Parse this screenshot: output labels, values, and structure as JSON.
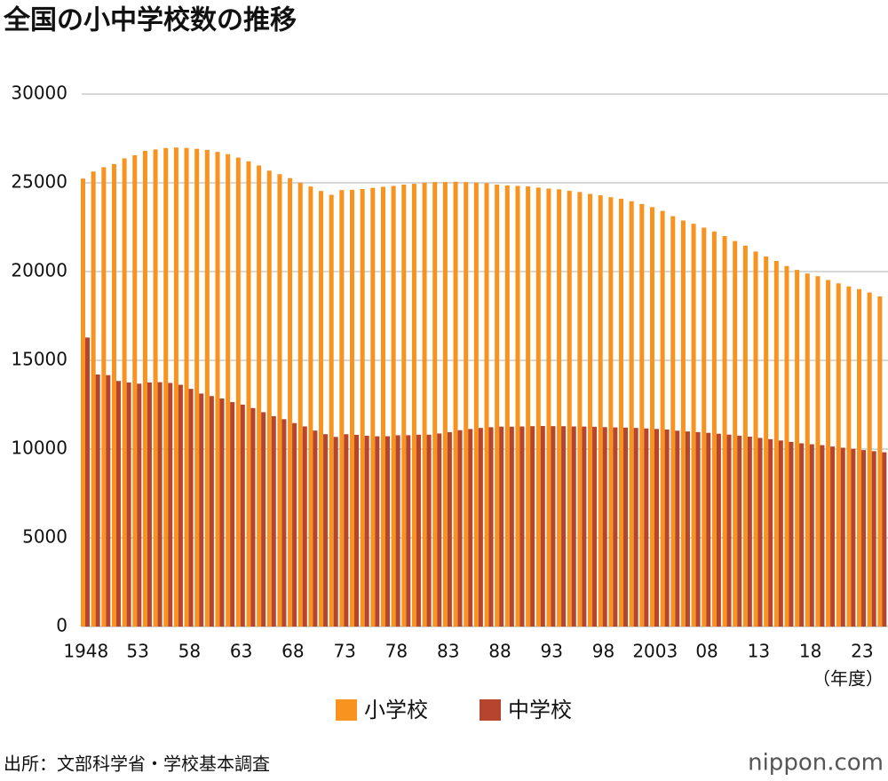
{
  "chart_data": {
    "type": "bar",
    "title": "全国の小中学校数の推移",
    "x_label": "（年度）",
    "categories": [
      "1948",
      null,
      null,
      null,
      null,
      "53",
      null,
      null,
      null,
      null,
      "58",
      null,
      null,
      null,
      null,
      "63",
      null,
      null,
      null,
      null,
      "68",
      null,
      null,
      null,
      null,
      "73",
      null,
      null,
      null,
      null,
      "78",
      null,
      null,
      null,
      null,
      "83",
      null,
      null,
      null,
      null,
      "88",
      null,
      null,
      null,
      null,
      "93",
      null,
      null,
      null,
      null,
      "98",
      null,
      null,
      null,
      null,
      "2003",
      null,
      null,
      null,
      null,
      "08",
      null,
      null,
      null,
      null,
      "13",
      null,
      null,
      null,
      null,
      "18",
      null,
      null,
      null,
      null,
      "23",
      null,
      null
    ],
    "series": [
      {
        "name": "小学校",
        "color": "#f7931e",
        "values": [
          25237,
          25638,
          25878,
          26056,
          26377,
          26555,
          26804,
          26880,
          26957,
          26988,
          26964,
          26916,
          26858,
          26741,
          26615,
          26423,
          26210,
          25977,
          25687,
          25487,
          25262,
          25013,
          24790,
          24540,
          24325,
          24592,
          24606,
          24650,
          24717,
          24777,
          24828,
          24899,
          24945,
          25005,
          25043,
          25045,
          25064,
          25040,
          25010,
          24982,
          24901,
          24851,
          24827,
          24798,
          24730,
          24676,
          24635,
          24548,
          24482,
          24376,
          24295,
          24188,
          24106,
          23964,
          23808,
          23633,
          23420,
          23123,
          22878,
          22693,
          22476,
          22258,
          22000,
          21721,
          21460,
          21131,
          20852,
          20601,
          20313,
          20095,
          19892,
          19738,
          19525,
          19336,
          19161,
          19012,
          18822,
          18600
        ]
      },
      {
        "name": "中学校",
        "color": "#b5452e",
        "values": [
          16285,
          14200,
          14165,
          13836,
          13748,
          13685,
          13750,
          13767,
          13724,
          13622,
          13392,
          13129,
          12986,
          12849,
          12647,
          12505,
          12310,
          12079,
          11851,
          11684,
          11463,
          11278,
          11040,
          10839,
          10686,
          10836,
          10802,
          10751,
          10719,
          10723,
          10778,
          10780,
          10810,
          10810,
          10879,
          10950,
          11062,
          11131,
          11190,
          11230,
          11266,
          11264,
          11275,
          11290,
          11300,
          11292,
          11289,
          11274,
          11269,
          11257,
          11236,
          11220,
          11209,
          11191,
          11159,
          11134,
          11102,
          11035,
          10992,
          10955,
          10915,
          10864,
          10815,
          10751,
          10699,
          10628,
          10557,
          10484,
          10404,
          10325,
          10270,
          10222,
          10142,
          10076,
          10012,
          9944,
          9882,
          9820
        ]
      }
    ],
    "ylim": [
      0,
      30000
    ],
    "yticks": [
      0,
      5000,
      10000,
      15000,
      20000,
      25000,
      30000
    ],
    "grid": true,
    "source": "出所：文部科学省・学校基本調査",
    "logo": "nippon.com"
  }
}
